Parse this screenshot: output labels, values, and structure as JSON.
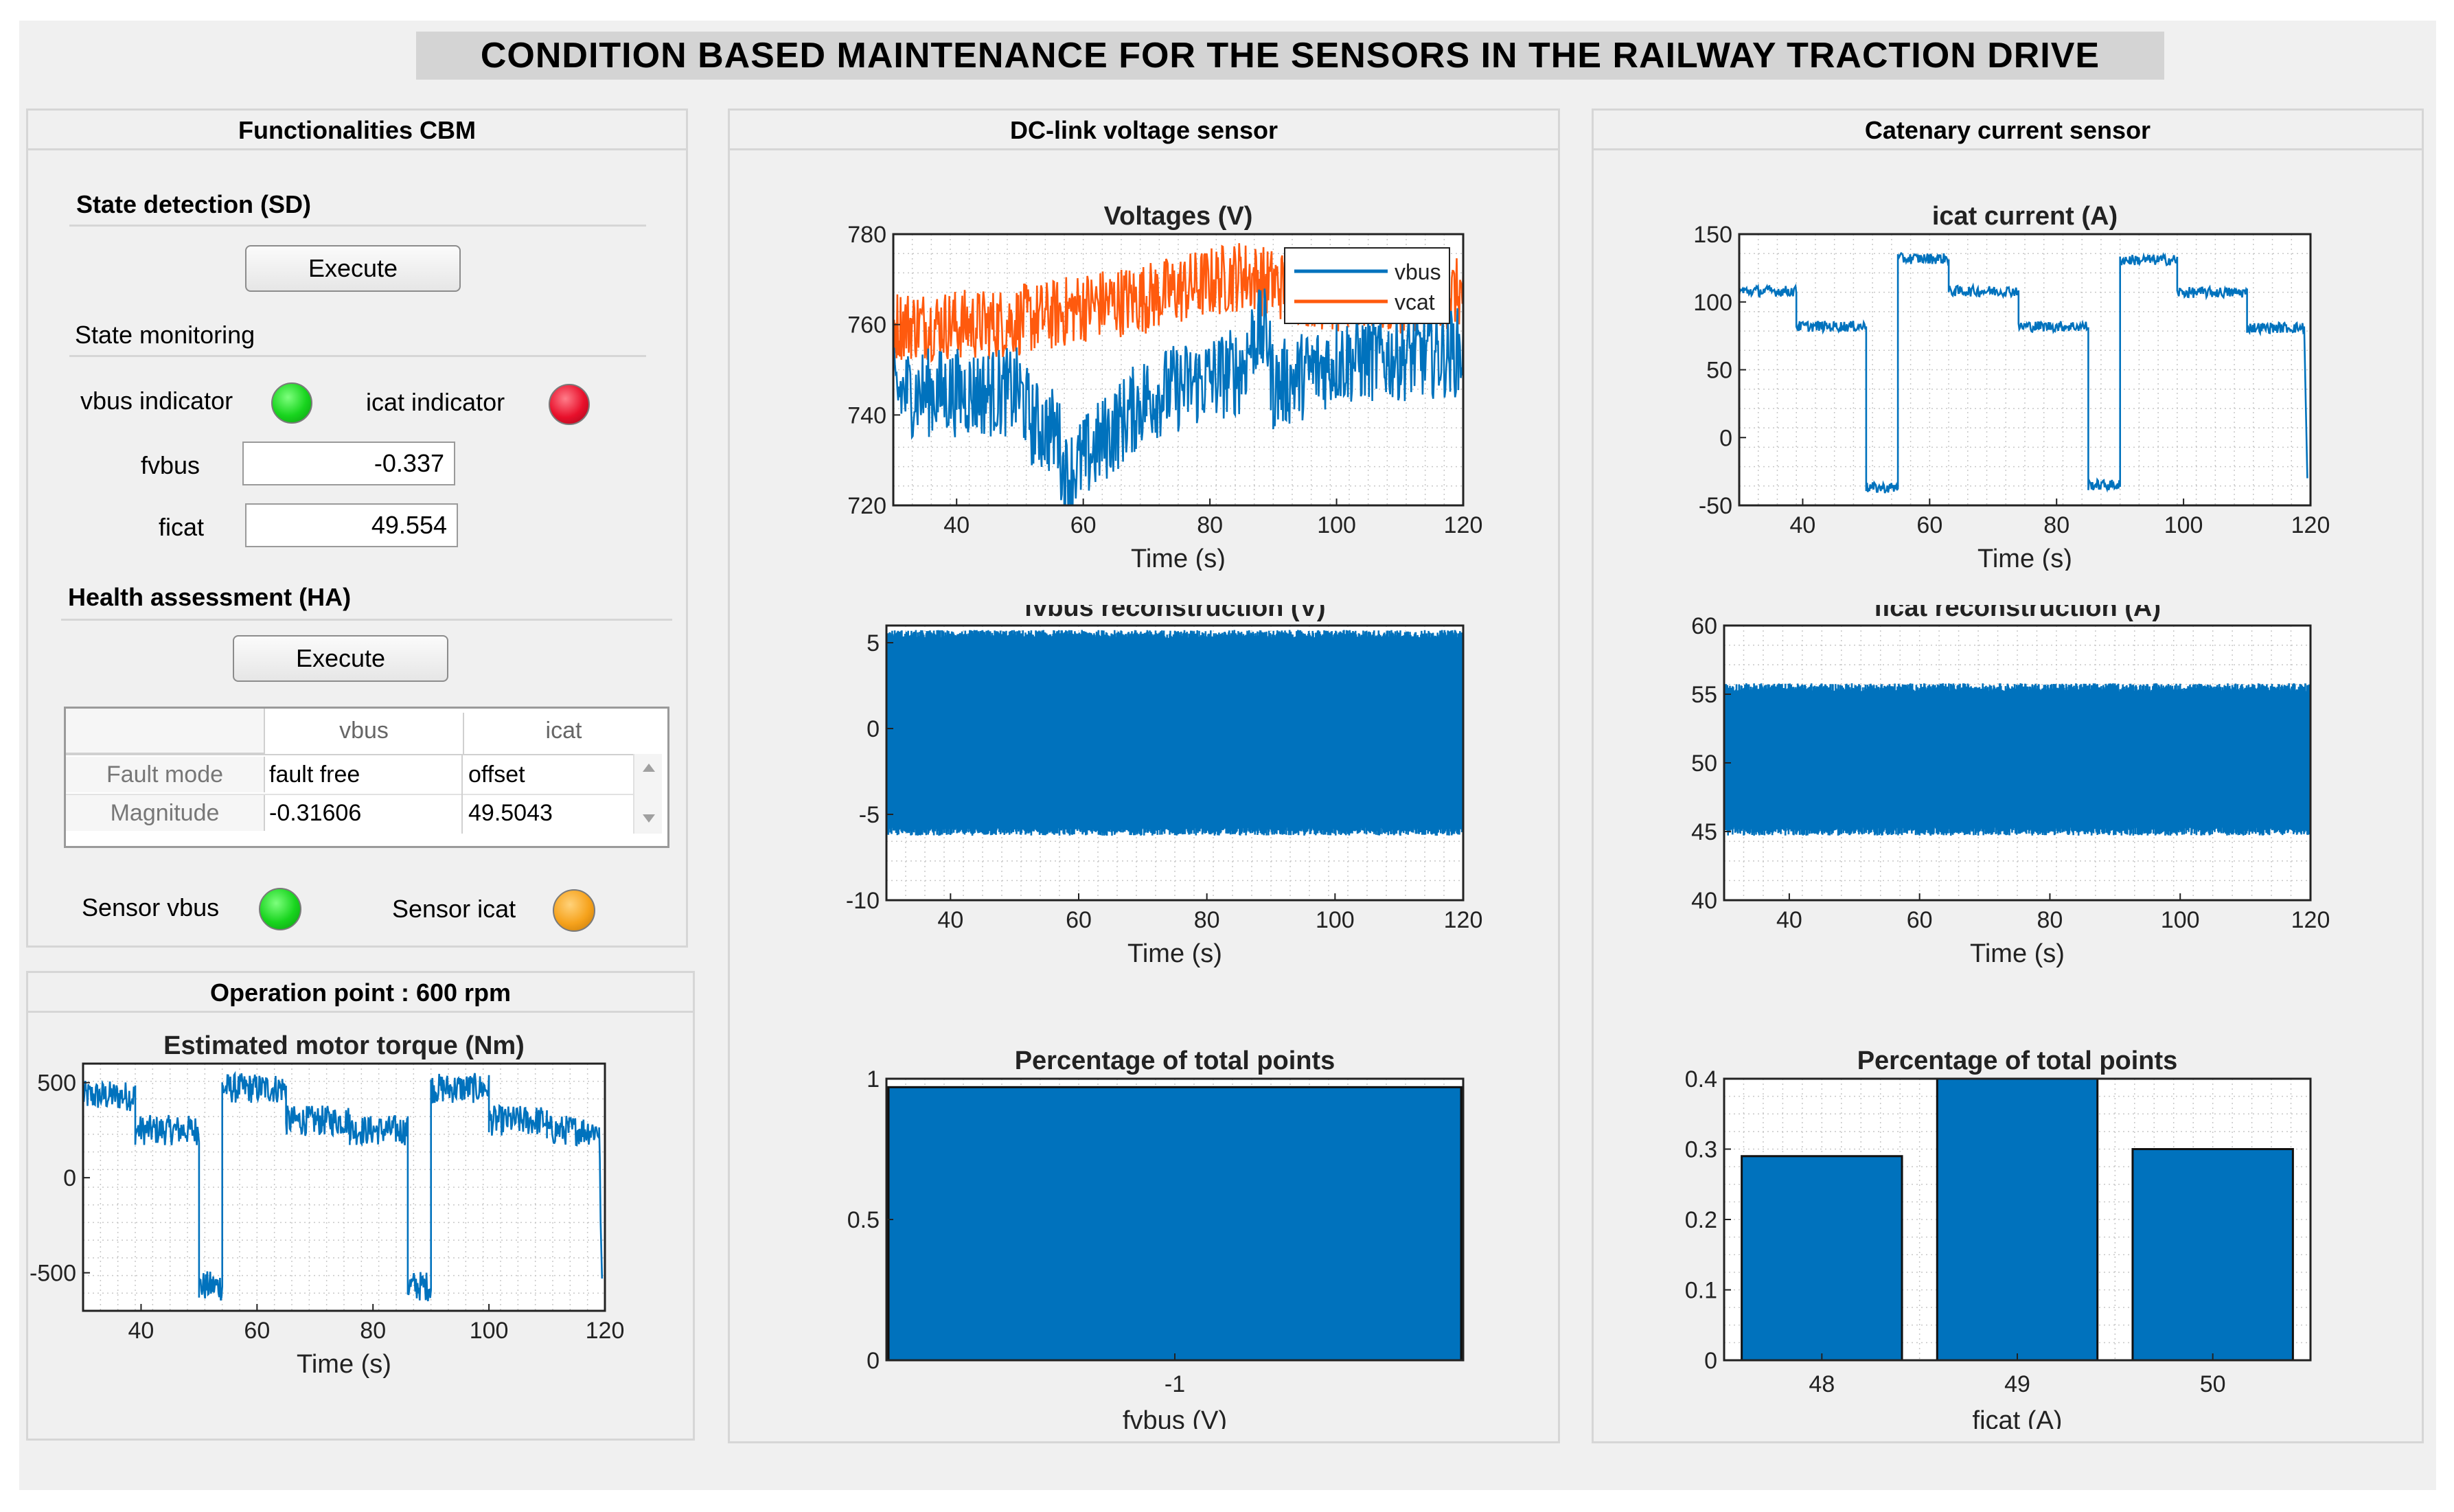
{
  "app_title": "CONDITION BASED MAINTENANCE FOR THE SENSORS IN THE RAILWAY TRACTION DRIVE",
  "colors": {
    "accent": "#0072bd",
    "vcat": "#ff5a0e",
    "green": "#18d41e",
    "red": "#e8102b",
    "amber": "#f6a21c",
    "panel_bg": "#f0f0f0"
  },
  "functionalities": {
    "title": "Functionalities CBM",
    "sd_title": "State detection (SD)",
    "sd_execute": "Execute",
    "monitoring_label": "State monitoring",
    "vbus_indicator_label": "vbus indicator",
    "icat_indicator_label": "icat indicator",
    "vbus_indicator_state": "green",
    "icat_indicator_state": "red",
    "fvbus_label": "fvbus",
    "fvbus_value": "-0.337",
    "ficat_label": "ficat",
    "ficat_value": "49.554",
    "ha_title": "Health assessment (HA)",
    "ha_execute": "Execute",
    "table": {
      "columns": [
        "vbus",
        "icat"
      ],
      "rows": [
        {
          "label": "Fault mode",
          "vbus": "fault free",
          "icat": "offset"
        },
        {
          "label": "Magnitude",
          "vbus": "-0.31606",
          "icat": "49.5043"
        }
      ]
    },
    "sensor_vbus_label": "Sensor vbus",
    "sensor_icat_label": "Sensor icat",
    "sensor_vbus_state": "green",
    "sensor_icat_state": "amber"
  },
  "operation": {
    "title": "Operation point : 600 rpm"
  },
  "dc_panel": {
    "title": "DC-link voltage sensor"
  },
  "cat_panel": {
    "title": "Catenary current sensor"
  },
  "chart_data": [
    {
      "id": "torque",
      "type": "line",
      "title": "Estimated motor torque (Nm)",
      "xlabel": "Time (s)",
      "ylabel": "",
      "xlim": [
        30,
        120
      ],
      "ylim": [
        -700,
        600
      ],
      "xticks": [
        40,
        60,
        80,
        100,
        120
      ],
      "yticks": [
        -500,
        0,
        500
      ],
      "series": [
        {
          "name": "torque",
          "noise": 80,
          "points": [
            [
              30,
              430
            ],
            [
              39,
              430
            ],
            [
              39,
              250
            ],
            [
              50,
              250
            ],
            [
              50,
              -570
            ],
            [
              54,
              -570
            ],
            [
              54,
              470
            ],
            [
              65,
              470
            ],
            [
              65,
              300
            ],
            [
              76,
              300
            ],
            [
              76,
              250
            ],
            [
              86,
              250
            ],
            [
              86,
              -570
            ],
            [
              90,
              -570
            ],
            [
              90,
              470
            ],
            [
              100,
              470
            ],
            [
              100,
              300
            ],
            [
              110,
              300
            ],
            [
              110,
              250
            ],
            [
              119,
              250
            ],
            [
              119.5,
              -600
            ]
          ]
        }
      ],
      "grid": true
    },
    {
      "id": "voltages",
      "type": "line",
      "title": "Voltages (V)",
      "xlabel": "Time (s)",
      "ylabel": "",
      "xlim": [
        30,
        120
      ],
      "ylim": [
        720,
        780
      ],
      "xticks": [
        40,
        60,
        80,
        100,
        120
      ],
      "yticks": [
        720,
        740,
        760,
        780
      ],
      "legend": [
        "vbus",
        "vcat"
      ],
      "legend_position": "top-right",
      "series": [
        {
          "name": "vcat",
          "noise": 8,
          "points": [
            [
              30,
              760
            ],
            [
              45,
              760
            ],
            [
              55,
              762
            ],
            [
              60,
              764
            ],
            [
              70,
              766
            ],
            [
              85,
              771
            ],
            [
              90,
              769
            ],
            [
              100,
              766
            ],
            [
              110,
              766
            ],
            [
              120,
              767
            ]
          ]
        },
        {
          "name": "vbus",
          "noise": 10,
          "points": [
            [
              30,
              745
            ],
            [
              50,
              745
            ],
            [
              52,
              738
            ],
            [
              56,
              736
            ],
            [
              57,
              726
            ],
            [
              60,
              730
            ],
            [
              70,
              744
            ],
            [
              85,
              750
            ],
            [
              87,
              758
            ],
            [
              89,
              758
            ],
            [
              90,
              746
            ],
            [
              100,
              752
            ],
            [
              110,
              753
            ],
            [
              120,
              754
            ]
          ]
        }
      ],
      "grid": true
    },
    {
      "id": "fvbus",
      "type": "line",
      "title": "fvbus reconstruction (V)",
      "xlabel": "Time (s)",
      "ylabel": "",
      "xlim": [
        30,
        120
      ],
      "ylim": [
        -10,
        6
      ],
      "xticks": [
        40,
        60,
        80,
        100,
        120
      ],
      "yticks": [
        -10,
        -5,
        0,
        5
      ],
      "series": [
        {
          "name": "fvbus",
          "band": [
            -6,
            5.5
          ]
        }
      ],
      "grid": true
    },
    {
      "id": "hist_fvbus",
      "type": "bar",
      "title": "Percentage of total points",
      "xlabel": "fvbus (V)",
      "categories": [
        "-1"
      ],
      "values": [
        0.97
      ],
      "ylim": [
        0,
        1
      ],
      "yticks": [
        0,
        0.5,
        1
      ]
    },
    {
      "id": "icat",
      "type": "line",
      "title": "icat current (A)",
      "xlabel": "Time (s)",
      "ylabel": "",
      "xlim": [
        30,
        120
      ],
      "ylim": [
        -50,
        150
      ],
      "xticks": [
        40,
        60,
        80,
        100,
        120
      ],
      "yticks": [
        -50,
        0,
        50,
        100,
        150
      ],
      "series": [
        {
          "name": "icat",
          "noise": 4,
          "points": [
            [
              30,
              108
            ],
            [
              39,
              108
            ],
            [
              39,
              82
            ],
            [
              50,
              82
            ],
            [
              50,
              -37
            ],
            [
              55,
              -37
            ],
            [
              55,
              132
            ],
            [
              63,
              132
            ],
            [
              63,
              108
            ],
            [
              74,
              108
            ],
            [
              74,
              82
            ],
            [
              85,
              82
            ],
            [
              85,
              -35
            ],
            [
              90,
              -35
            ],
            [
              90,
              131
            ],
            [
              99,
              131
            ],
            [
              99,
              107
            ],
            [
              110,
              107
            ],
            [
              110,
              81
            ],
            [
              119,
              81
            ],
            [
              119.5,
              -30
            ]
          ]
        }
      ],
      "grid": true
    },
    {
      "id": "ficat",
      "type": "line",
      "title": "ficat reconstruction (A)",
      "xlabel": "Time (s)",
      "ylabel": "",
      "xlim": [
        30,
        120
      ],
      "ylim": [
        40,
        60
      ],
      "xticks": [
        40,
        60,
        80,
        100,
        120
      ],
      "yticks": [
        40,
        45,
        50,
        55,
        60
      ],
      "series": [
        {
          "name": "ficat",
          "band": [
            45,
            55.5
          ]
        }
      ],
      "grid": true
    },
    {
      "id": "hist_ficat",
      "type": "bar",
      "title": "Percentage of total points",
      "xlabel": "ficat (A)",
      "categories": [
        "48",
        "49",
        "50"
      ],
      "values": [
        0.29,
        0.41,
        0.3
      ],
      "ylim": [
        0,
        0.4
      ],
      "yticks": [
        0,
        0.1,
        0.2,
        0.3,
        0.4
      ]
    }
  ]
}
